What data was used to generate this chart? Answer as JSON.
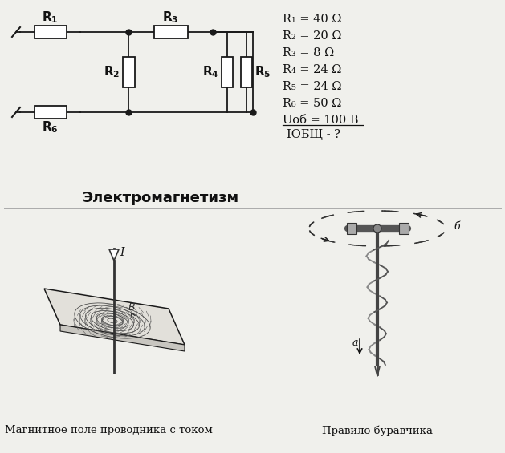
{
  "title": "Электромагнетизм",
  "bg_color": "#f0f0ec",
  "values_text": [
    "R₁ = 40 Ω",
    "R₂ = 20 Ω",
    "R₃ = 8 Ω",
    "R₄ = 24 Ω",
    "R₅ = 24 Ω",
    "R₆ = 50 Ω"
  ],
  "uob_label": "U",
  "uob_sub": "об",
  "uob_val": " = 100 В",
  "iobsh_label": "I",
  "iobsh_sub": "ОБЩ",
  "iobsh_val": " - ?",
  "caption_left": "Магнитное поле проводника с током",
  "caption_right": "Правило буравчика",
  "lc": "#1a1a1a",
  "tc": "#111111"
}
